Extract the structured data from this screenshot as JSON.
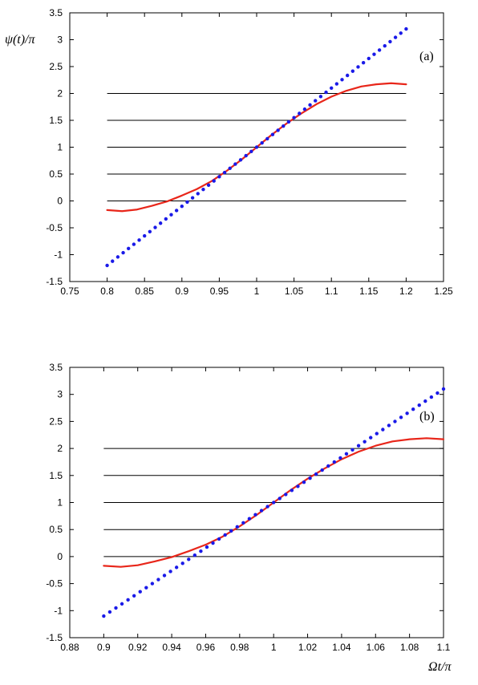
{
  "colors": {
    "background": "#ffffff",
    "axes": "#000000",
    "hlines": "#000000",
    "curve": "#e8261a",
    "dots": "#1a1ae8"
  },
  "chart_data": [
    {
      "type": "line",
      "panel_label": "(a)",
      "ylabel": "ψ(t)/π",
      "xlabel": "",
      "xlim": [
        0.75,
        1.25
      ],
      "ylim": [
        -1.5,
        3.5
      ],
      "xticks": [
        "0.75",
        "0.8",
        "0.85",
        "0.9",
        "0.95",
        "1",
        "1.05",
        "1.1",
        "1.15",
        "1.2",
        "1.25"
      ],
      "yticks": [
        "-1.5",
        "-1",
        "-0.5",
        "0",
        "0.5",
        "1",
        "1.5",
        "2",
        "2.5",
        "3",
        "3.5"
      ],
      "grid": false,
      "horizontal_lines": {
        "y": [
          0,
          0.5,
          1,
          1.5,
          2
        ],
        "x_range": [
          0.8,
          1.2
        ]
      },
      "series": [
        {
          "style": "solid",
          "color": "#e8261a",
          "x": [
            0.8,
            0.82,
            0.84,
            0.86,
            0.88,
            0.9,
            0.92,
            0.94,
            0.96,
            0.98,
            1.0,
            1.02,
            1.04,
            1.06,
            1.08,
            1.1,
            1.12,
            1.14,
            1.16,
            1.18,
            1.2
          ],
          "y": [
            -0.17,
            -0.19,
            -0.16,
            -0.09,
            -0.01,
            0.1,
            0.22,
            0.37,
            0.56,
            0.77,
            1.0,
            1.23,
            1.44,
            1.63,
            1.8,
            1.94,
            2.05,
            2.13,
            2.17,
            2.19,
            2.17
          ]
        },
        {
          "style": "dotted",
          "color": "#1a1ae8",
          "x": [
            0.8,
            1.2
          ],
          "y": [
            -1.2,
            3.2
          ]
        }
      ]
    },
    {
      "type": "line",
      "panel_label": "(b)",
      "ylabel": "",
      "xlabel": "Ωt/π",
      "xlim": [
        0.88,
        1.1
      ],
      "ylim": [
        -1.5,
        3.5
      ],
      "xticks": [
        "0.88",
        "0.9",
        "0.92",
        "0.94",
        "0.96",
        "0.98",
        "1",
        "1.02",
        "1.04",
        "1.06",
        "1.08",
        "1.1"
      ],
      "yticks": [
        "-1.5",
        "-1",
        "-0.5",
        "0",
        "0.5",
        "1",
        "1.5",
        "2",
        "2.5",
        "3",
        "3.5"
      ],
      "grid": false,
      "horizontal_lines": {
        "y": [
          0,
          0.5,
          1,
          1.5,
          2
        ],
        "x_range": [
          0.9,
          1.1
        ]
      },
      "series": [
        {
          "style": "solid",
          "color": "#e8261a",
          "x": [
            0.9,
            0.91,
            0.92,
            0.93,
            0.94,
            0.95,
            0.96,
            0.97,
            0.98,
            0.99,
            1.0,
            1.01,
            1.02,
            1.03,
            1.04,
            1.05,
            1.06,
            1.07,
            1.08,
            1.09,
            1.1
          ],
          "y": [
            -0.17,
            -0.19,
            -0.16,
            -0.09,
            -0.01,
            0.1,
            0.22,
            0.37,
            0.56,
            0.77,
            1.0,
            1.23,
            1.44,
            1.63,
            1.8,
            1.94,
            2.05,
            2.13,
            2.17,
            2.19,
            2.17
          ]
        },
        {
          "style": "dotted",
          "color": "#1a1ae8",
          "x": [
            0.9,
            1.1
          ],
          "y": [
            -1.1,
            3.1
          ]
        }
      ]
    }
  ]
}
